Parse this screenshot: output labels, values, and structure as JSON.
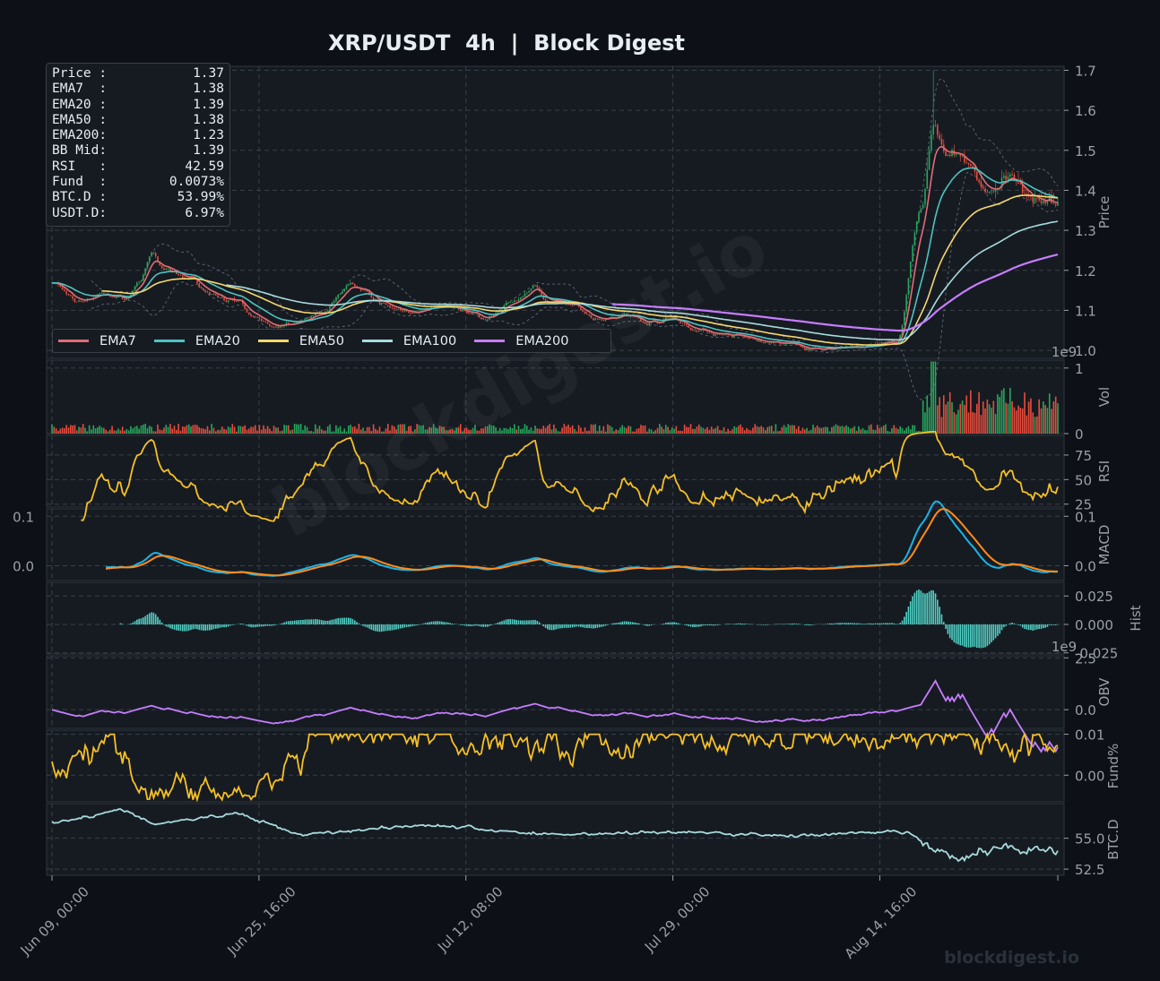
{
  "title": "XRP/USDT  4h  |  Block Digest",
  "watermark": "blockdigest.io",
  "footer_brand": "blockdigest.io",
  "info_box": [
    {
      "label": "Price :",
      "value": "1.37"
    },
    {
      "label": "EMA7  :",
      "value": "1.38"
    },
    {
      "label": "EMA20 :",
      "value": "1.39"
    },
    {
      "label": "EMA50 :",
      "value": "1.38"
    },
    {
      "label": "EMA200:",
      "value": "1.23"
    },
    {
      "label": "BB Mid:",
      "value": "1.39"
    },
    {
      "label": "RSI   :",
      "value": "42.59"
    },
    {
      "label": "Fund  :",
      "value": "0.0073%"
    },
    {
      "label": "BTC.D :",
      "value": "53.99%"
    },
    {
      "label": "USDT.D:",
      "value": "6.97%"
    }
  ],
  "legend": [
    {
      "name": "EMA7",
      "color": "#e06c75"
    },
    {
      "name": "EMA20",
      "color": "#4fc3c0"
    },
    {
      "name": "EMA50",
      "color": "#f5d76e"
    },
    {
      "name": "EMA100",
      "color": "#a8dadc"
    },
    {
      "name": "EMA200",
      "color": "#c77dff"
    }
  ],
  "colors": {
    "background": "#0d1117",
    "panel": "#161b22",
    "grid": "#3a4048",
    "text": "#9aa0a6",
    "up": "#26a65b",
    "down": "#e74c3c",
    "rsi": "#f6c026",
    "macd": "#1ab4e8",
    "signal": "#ff8c1a",
    "hist": "#4fd1c5",
    "obv": "#c77dff",
    "fund": "#f6c026",
    "btcd": "#a8dadc",
    "bb": "#6b7280"
  },
  "chart_data": {
    "type": "line",
    "x_ticks": [
      "Jun 09, 00:00",
      "Jun 25, 16:00",
      "Jul 12, 08:00",
      "Jul 29, 00:00",
      "Aug 14, 16:00"
    ],
    "x_range_days": [
      0,
      81
    ],
    "price_anchors": {
      "days": [
        0,
        2,
        4,
        6,
        7,
        8,
        9,
        11,
        13,
        15,
        16,
        18,
        20,
        22,
        24,
        25,
        26,
        28,
        30,
        31,
        33,
        35,
        37,
        39,
        40,
        42,
        44,
        46,
        48,
        50,
        52,
        54,
        56,
        58,
        60,
        62,
        64,
        66,
        68,
        70,
        71,
        72,
        73,
        74,
        75,
        76,
        77,
        78,
        79,
        80,
        81
      ],
      "close": [
        1.17,
        1.12,
        1.14,
        1.13,
        1.17,
        1.24,
        1.2,
        1.18,
        1.14,
        1.12,
        1.08,
        1.06,
        1.07,
        1.1,
        1.17,
        1.15,
        1.12,
        1.1,
        1.1,
        1.11,
        1.1,
        1.08,
        1.12,
        1.16,
        1.12,
        1.11,
        1.08,
        1.09,
        1.07,
        1.08,
        1.05,
        1.04,
        1.03,
        1.02,
        1.01,
        1.0,
        1.01,
        1.01,
        1.02,
        1.35,
        1.55,
        1.5,
        1.49,
        1.46,
        1.41,
        1.39,
        1.43,
        1.4,
        1.39,
        1.39,
        1.37
      ]
    },
    "ema_last": {
      "EMA7": 1.38,
      "EMA20": 1.39,
      "EMA50": 1.38,
      "EMA100": 1.31,
      "EMA200": 1.23
    },
    "panels": [
      {
        "name": "Price",
        "ylabel": "Price",
        "yticks": [
          1.0,
          1.1,
          1.2,
          1.3,
          1.4,
          1.5,
          1.6,
          1.7
        ],
        "ylim": [
          0.98,
          1.71
        ]
      },
      {
        "name": "Vol",
        "ylabel": "Vol",
        "yticks": [
          0,
          1
        ],
        "ylim": [
          0,
          1.12
        ],
        "multiplier": "1e9"
      },
      {
        "name": "RSI",
        "ylabel": "RSI",
        "yticks": [
          25,
          50,
          75
        ],
        "ylim": [
          22,
          95
        ],
        "last": 42.59
      },
      {
        "name": "MACD",
        "ylabel": "MACD",
        "yticks": [
          0.0,
          0.1
        ],
        "ylim": [
          -0.03,
          0.115
        ]
      },
      {
        "name": "Hist",
        "ylabel": "Hist",
        "yticks": [
          -0.025,
          0.0,
          0.025
        ],
        "ylim": [
          -0.026,
          0.037
        ]
      },
      {
        "name": "OBV",
        "ylabel": "OBV",
        "yticks": [
          0.0,
          2.5
        ],
        "ylim": [
          -0.9,
          2.6
        ],
        "multiplier": "1e9"
      },
      {
        "name": "Fund%",
        "ylabel": "Fund%",
        "yticks": [
          0.0,
          0.01
        ],
        "ylim": [
          -0.0065,
          0.011
        ],
        "last": 0.0073
      },
      {
        "name": "BTC.D",
        "ylabel": "BTC.D",
        "yticks": [
          52.5,
          55.0
        ],
        "ylim": [
          52.0,
          57.8
        ],
        "last": 53.99
      }
    ]
  }
}
